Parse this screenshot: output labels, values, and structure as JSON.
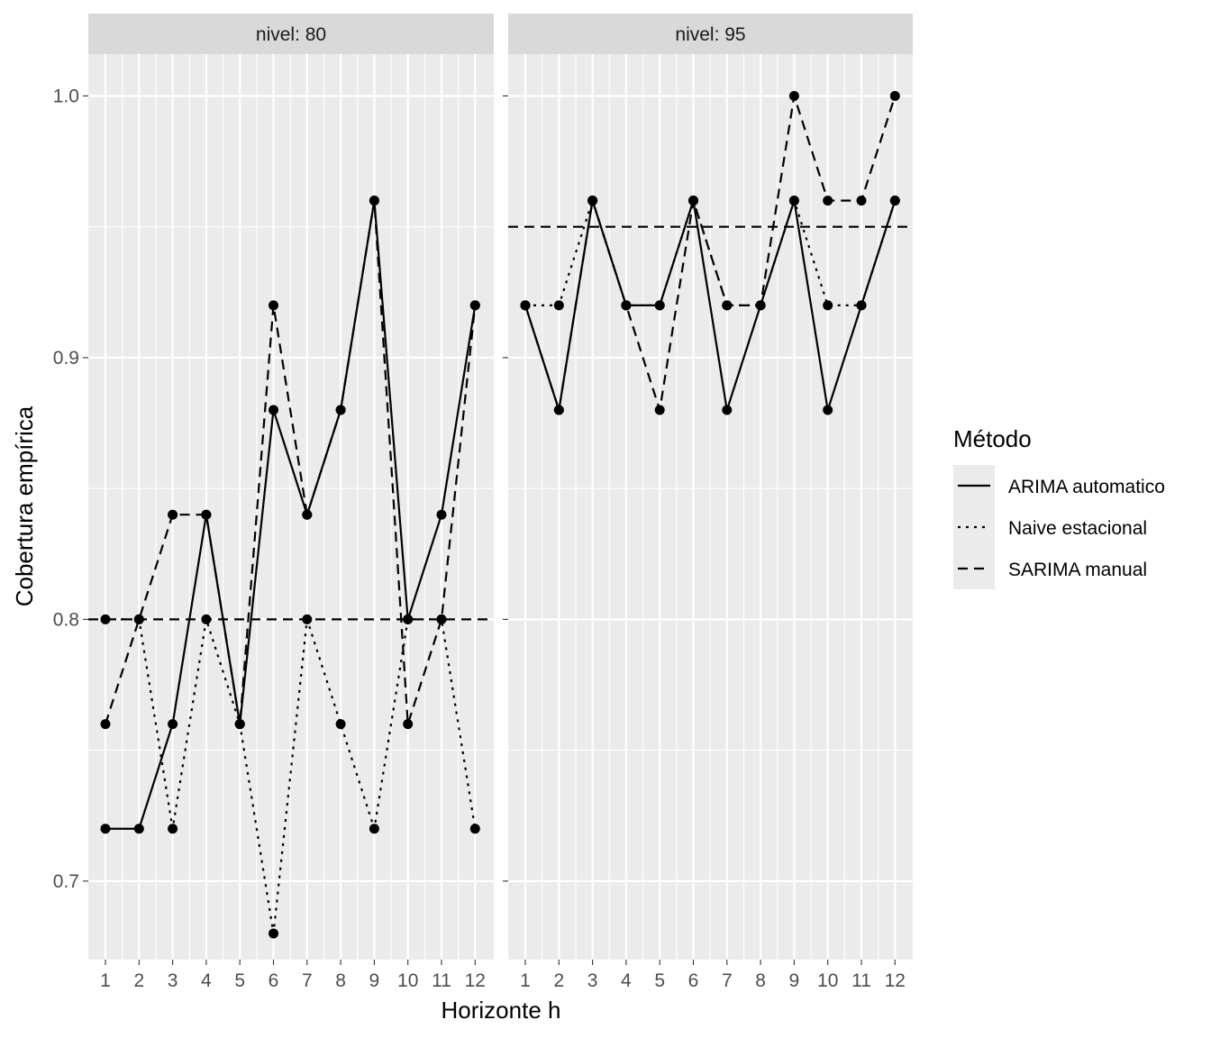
{
  "chart_data": {
    "type": "line",
    "xlabel": "Horizonte h",
    "ylabel": "Cobertura empírica",
    "x": [
      1,
      2,
      3,
      4,
      5,
      6,
      7,
      8,
      9,
      10,
      11,
      12
    ],
    "ylim": [
      0.67,
      1.016
    ],
    "y_ticks": [
      "0.7",
      "0.8",
      "0.9",
      "1.0"
    ],
    "grid": true,
    "legend": {
      "title": "Método",
      "position": "right",
      "entries": [
        "ARIMA automatico",
        "Naive estacional",
        "SARIMA manual"
      ]
    },
    "line_styles": {
      "ARIMA automatico": "solid",
      "Naive estacional": "dotted",
      "SARIMA manual": "dashed"
    },
    "colors": {
      "panel_bg": "#ebebeb",
      "grid": "#ffffff",
      "strip_bg": "#d9d9d9",
      "series": "#000000"
    },
    "facets": [
      {
        "label": "nivel: 80",
        "reference_line": 0.8,
        "series": [
          {
            "name": "ARIMA automatico",
            "values": [
              0.72,
              0.72,
              0.76,
              0.84,
              0.76,
              0.88,
              0.84,
              0.88,
              0.96,
              0.8,
              0.84,
              0.92
            ]
          },
          {
            "name": "Naive estacional",
            "values": [
              0.8,
              0.8,
              0.72,
              0.8,
              0.76,
              0.68,
              0.8,
              0.76,
              0.72,
              0.8,
              0.8,
              0.72
            ]
          },
          {
            "name": "SARIMA manual",
            "values": [
              0.76,
              0.8,
              0.84,
              0.84,
              0.76,
              0.92,
              0.84,
              0.88,
              0.96,
              0.76,
              0.8,
              0.92
            ]
          }
        ]
      },
      {
        "label": "nivel: 95",
        "reference_line": 0.95,
        "series": [
          {
            "name": "ARIMA automatico",
            "values": [
              0.92,
              0.88,
              0.96,
              0.92,
              0.92,
              0.96,
              0.88,
              0.92,
              0.96,
              0.88,
              0.92,
              0.96
            ]
          },
          {
            "name": "Naive estacional",
            "values": [
              0.92,
              0.92,
              0.96,
              0.92,
              0.92,
              0.96,
              0.92,
              0.92,
              0.96,
              0.92,
              0.92,
              0.96
            ]
          },
          {
            "name": "SARIMA manual",
            "values": [
              0.92,
              0.88,
              0.96,
              0.92,
              0.88,
              0.96,
              0.92,
              0.92,
              1.0,
              0.96,
              0.96,
              1.0
            ]
          }
        ]
      }
    ]
  }
}
